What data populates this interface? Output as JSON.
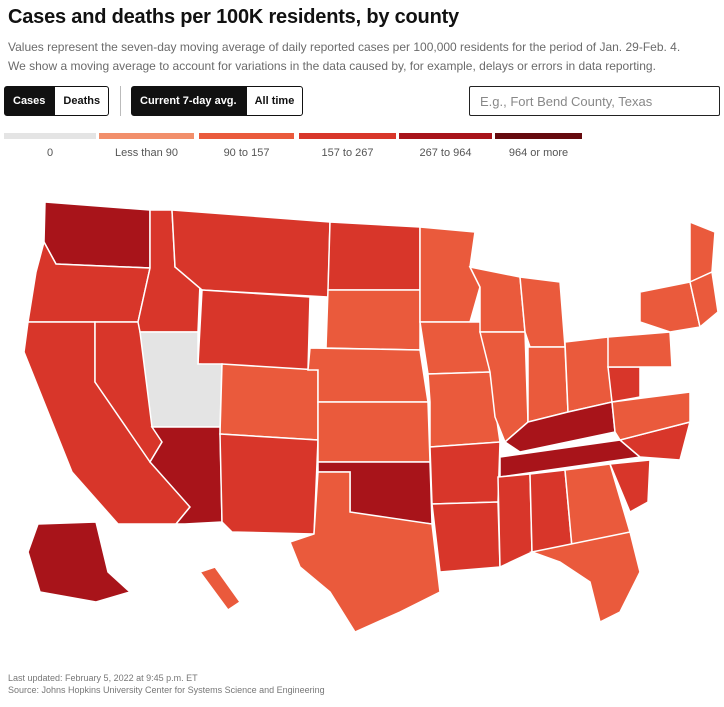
{
  "header": {
    "title": "Cases and deaths per 100K residents, by county",
    "subtitle_line1": "Values represent the seven-day moving average of daily reported cases per 100,000 residents for the period of Jan. 29-Feb. 4.",
    "subtitle_line2": "We show a moving average to account for variations in the data caused by, for example, delays or errors in data reporting."
  },
  "controls": {
    "metric": {
      "cases_label": "Cases",
      "deaths_label": "Deaths",
      "selected": "Cases"
    },
    "period": {
      "current_label": "Current 7-day avg.",
      "all_time_label": "All time",
      "selected": "Current 7-day avg."
    },
    "search": {
      "placeholder": "E.g., Fort Bend County, Texas",
      "value": ""
    }
  },
  "legend": {
    "items": [
      {
        "label": "0",
        "color": "#e4e4e4"
      },
      {
        "label": "Less than 90",
        "color": "#f28f6b"
      },
      {
        "label": "90 to 157",
        "color": "#ea5a3c"
      },
      {
        "label": "157 to 267",
        "color": "#d8362a"
      },
      {
        "label": "267 to 964",
        "color": "#a8141a"
      },
      {
        "label": "964 or more",
        "color": "#650a0e"
      }
    ]
  },
  "map": {
    "states": [
      {
        "name": "Washington",
        "bin": 4
      },
      {
        "name": "Oregon",
        "bin": 3
      },
      {
        "name": "California",
        "bin": 3
      },
      {
        "name": "Nevada",
        "bin": 3
      },
      {
        "name": "Idaho",
        "bin": 3
      },
      {
        "name": "Montana",
        "bin": 3
      },
      {
        "name": "Wyoming",
        "bin": 3
      },
      {
        "name": "Utah",
        "bin": 0
      },
      {
        "name": "Arizona",
        "bin": 4
      },
      {
        "name": "Colorado",
        "bin": 2
      },
      {
        "name": "New Mexico",
        "bin": 3
      },
      {
        "name": "North Dakota",
        "bin": 3
      },
      {
        "name": "South Dakota",
        "bin": 2
      },
      {
        "name": "Nebraska",
        "bin": 2
      },
      {
        "name": "Kansas",
        "bin": 2
      },
      {
        "name": "Oklahoma",
        "bin": 4
      },
      {
        "name": "Texas",
        "bin": 2
      },
      {
        "name": "Minnesota",
        "bin": 2
      },
      {
        "name": "Iowa",
        "bin": 2
      },
      {
        "name": "Missouri",
        "bin": 2
      },
      {
        "name": "Arkansas",
        "bin": 3
      },
      {
        "name": "Louisiana",
        "bin": 3
      },
      {
        "name": "Wisconsin",
        "bin": 2
      },
      {
        "name": "Illinois",
        "bin": 2
      },
      {
        "name": "Michigan",
        "bin": 2
      },
      {
        "name": "Indiana",
        "bin": 2
      },
      {
        "name": "Ohio",
        "bin": 2
      },
      {
        "name": "Kentucky",
        "bin": 4
      },
      {
        "name": "Tennessee",
        "bin": 4
      },
      {
        "name": "Mississippi",
        "bin": 3
      },
      {
        "name": "Alabama",
        "bin": 3
      },
      {
        "name": "Georgia",
        "bin": 2
      },
      {
        "name": "Florida",
        "bin": 2
      },
      {
        "name": "South Carolina",
        "bin": 3
      },
      {
        "name": "North Carolina",
        "bin": 3
      },
      {
        "name": "Virginia",
        "bin": 2
      },
      {
        "name": "West Virginia",
        "bin": 3
      },
      {
        "name": "Pennsylvania",
        "bin": 2
      },
      {
        "name": "New York",
        "bin": 2
      },
      {
        "name": "Maine",
        "bin": 2
      },
      {
        "name": "New England",
        "bin": 2
      },
      {
        "name": "Alaska",
        "bin": 4
      },
      {
        "name": "Hawaii",
        "bin": 2
      }
    ]
  },
  "footer": {
    "updated": "Last updated: February 5, 2022 at 9:45 p.m. ET",
    "source": "Source: Johns Hopkins University Center for Systems Science and Engineering"
  }
}
